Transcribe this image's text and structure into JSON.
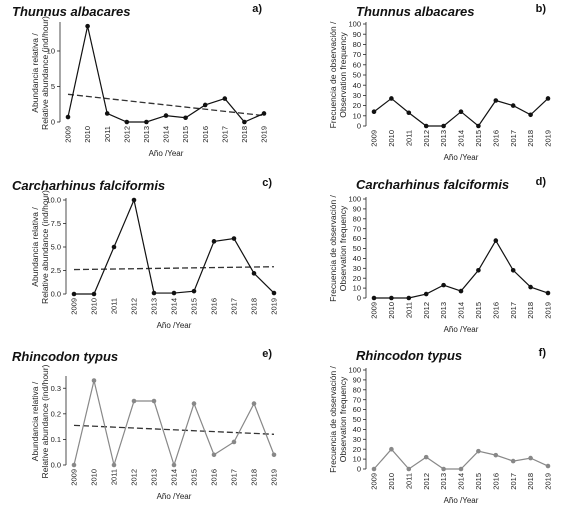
{
  "chart_data": [
    {
      "panel": "a)",
      "type": "line",
      "title": "Thunnus albacares",
      "ylabel": [
        "Abundancia relativa /",
        "Relative abundance (ind/hour)"
      ],
      "xlabel": "Año /Year",
      "x": [
        2009,
        2010,
        2011,
        2012,
        2013,
        2014,
        2015,
        2016,
        2017,
        2018,
        2019
      ],
      "series": [
        {
          "values": [
            0.7,
            13.5,
            1.2,
            0.0,
            0.0,
            0.9,
            0.6,
            2.4,
            3.3,
            0.0,
            1.2
          ]
        }
      ],
      "trend": [
        3.9,
        0.9
      ],
      "ylim": [
        0,
        13.8
      ],
      "yticks": [
        "0",
        "5",
        "10"
      ],
      "ytick_values": [
        0,
        5,
        10
      ],
      "color": "#111111"
    },
    {
      "panel": "b)",
      "type": "line",
      "title": "Thunnus albacares",
      "ylabel": [
        "Frecuencia de observación /",
        "Observation frequency"
      ],
      "xlabel": "Año /Year",
      "x": [
        2009,
        2010,
        2011,
        2012,
        2013,
        2014,
        2015,
        2016,
        2017,
        2018,
        2019
      ],
      "series": [
        {
          "values": [
            14,
            27,
            13,
            0,
            0,
            14,
            0,
            25,
            20,
            11,
            27
          ]
        }
      ],
      "ylim": [
        0,
        100
      ],
      "yticks": [
        "0",
        "10",
        "20",
        "30",
        "40",
        "50",
        "60",
        "70",
        "80",
        "90",
        "100"
      ],
      "ytick_values": [
        0,
        10,
        20,
        30,
        40,
        50,
        60,
        70,
        80,
        90,
        100
      ],
      "color": "#111111"
    },
    {
      "panel": "c)",
      "type": "line",
      "title": "Carcharhinus falciformis",
      "ylabel": [
        "Abundancia relativa /",
        "Relative abundance (ind/hour)"
      ],
      "xlabel": "Año /Year",
      "x": [
        2009,
        2010,
        2011,
        2012,
        2013,
        2014,
        2015,
        2016,
        2017,
        2018,
        2019
      ],
      "series": [
        {
          "values": [
            0.0,
            0.0,
            5.0,
            10.0,
            0.1,
            0.1,
            0.3,
            5.6,
            5.9,
            2.2,
            0.1
          ]
        }
      ],
      "trend": [
        2.6,
        2.9
      ],
      "ylim": [
        0,
        10
      ],
      "yticks": [
        "0.0",
        "2.5",
        "5.0",
        "7.5",
        "10.0"
      ],
      "ytick_values": [
        0,
        2.5,
        5,
        7.5,
        10
      ],
      "color": "#111111"
    },
    {
      "panel": "d)",
      "type": "line",
      "title": "Carcharhinus falciformis",
      "ylabel": [
        "Frecuencia de observación /",
        "Observation frequency"
      ],
      "xlabel": "Año /Year",
      "x": [
        2009,
        2010,
        2011,
        2012,
        2013,
        2014,
        2015,
        2016,
        2017,
        2018,
        2019
      ],
      "series": [
        {
          "values": [
            0,
            0,
            0,
            4,
            13,
            7,
            28,
            58,
            28,
            11,
            5
          ]
        }
      ],
      "ylim": [
        0,
        100
      ],
      "yticks": [
        "0",
        "10",
        "20",
        "30",
        "40",
        "50",
        "60",
        "70",
        "80",
        "90",
        "100"
      ],
      "ytick_values": [
        0,
        10,
        20,
        30,
        40,
        50,
        60,
        70,
        80,
        90,
        100
      ],
      "color": "#111111"
    },
    {
      "panel": "e)",
      "type": "line",
      "title": "Rhincodon typus",
      "ylabel": [
        "Abundancia relativa /",
        "Relative abundance (ind/hour)"
      ],
      "xlabel": "Año /Year",
      "x": [
        2009,
        2010,
        2011,
        2012,
        2013,
        2014,
        2015,
        2016,
        2017,
        2018,
        2019
      ],
      "series": [
        {
          "values": [
            0.0,
            0.33,
            0.0,
            0.25,
            0.25,
            0.0,
            0.24,
            0.04,
            0.09,
            0.24,
            0.04
          ]
        }
      ],
      "trend": [
        0.155,
        0.12
      ],
      "ylim": [
        0,
        0.34
      ],
      "yticks": [
        "0.0",
        "0.1",
        "0.2",
        "0.3"
      ],
      "ytick_values": [
        0,
        0.1,
        0.2,
        0.3
      ],
      "color": "#888888"
    },
    {
      "panel": "f)",
      "type": "line",
      "title": "Rhincodon typus",
      "ylabel": [
        "Frecuencia de observación /",
        "Observation frequency"
      ],
      "xlabel": "Año /Year",
      "x": [
        2009,
        2010,
        2011,
        2012,
        2013,
        2014,
        2015,
        2016,
        2017,
        2018,
        2019
      ],
      "series": [
        {
          "values": [
            0,
            20,
            0,
            12,
            0,
            0,
            18,
            14,
            8,
            11,
            3
          ]
        }
      ],
      "ylim": [
        0,
        100
      ],
      "yticks": [
        "0",
        "10",
        "20",
        "30",
        "40",
        "50",
        "60",
        "70",
        "80",
        "90",
        "100"
      ],
      "ytick_values": [
        0,
        10,
        20,
        30,
        40,
        50,
        60,
        70,
        80,
        90,
        100
      ],
      "color": "#888888"
    }
  ]
}
